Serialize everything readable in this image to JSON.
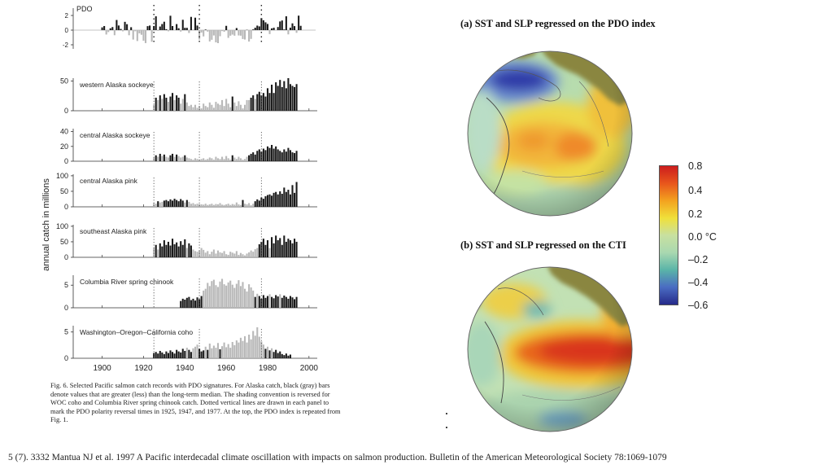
{
  "chart_data": [
    {
      "type": "bar",
      "title": "PDO",
      "ylabel": "",
      "yticks": [
        "2",
        "0",
        "-2"
      ],
      "ylim": [
        -3,
        3
      ],
      "dotted_lines": [
        1925,
        1947,
        1977
      ]
    },
    {
      "type": "bar",
      "shared_ylabel": "annual catch in millions",
      "xlim": [
        1886,
        2004
      ],
      "xticks": [
        "1900",
        "1920",
        "1940",
        "1960",
        "1980",
        "2000"
      ],
      "dotted_lines": [
        1925,
        1947,
        1977
      ],
      "panels": [
        {
          "name": "western Alaska sockeye",
          "yticks": [
            "50",
            "0"
          ],
          "ymax": 55,
          "start": 1925,
          "values": [
            10,
            22,
            18,
            26,
            20,
            28,
            22,
            15,
            24,
            30,
            18,
            26,
            22,
            12,
            20,
            28,
            14,
            8,
            10,
            6,
            10,
            5,
            8,
            4,
            12,
            8,
            6,
            14,
            10,
            5,
            15,
            12,
            10,
            18,
            8,
            20,
            12,
            6,
            24,
            14,
            8,
            16,
            10,
            4,
            10,
            18,
            18,
            22,
            26,
            20,
            28,
            32,
            26,
            30,
            24,
            38,
            30,
            44,
            30,
            48,
            42,
            52,
            40,
            50,
            38,
            55,
            45,
            42,
            40,
            45
          ]
        },
        {
          "name": "central Alaska sockeye",
          "yticks": [
            "40",
            "20",
            "0"
          ],
          "ymax": 44,
          "start": 1925,
          "values": [
            5,
            8,
            6,
            10,
            7,
            9,
            6,
            5,
            8,
            10,
            6,
            9,
            7,
            5,
            6,
            8,
            5,
            4,
            3,
            2,
            4,
            3,
            2,
            3,
            4,
            2,
            3,
            5,
            4,
            2,
            6,
            4,
            3,
            6,
            3,
            7,
            4,
            2,
            8,
            5,
            3,
            6,
            4,
            2,
            3,
            6,
            8,
            10,
            12,
            9,
            14,
            16,
            13,
            17,
            15,
            20,
            18,
            22,
            17,
            20,
            16,
            14,
            12,
            16,
            13,
            18,
            15,
            12,
            11,
            14
          ]
        },
        {
          "name": "central Alaska pink",
          "yticks": [
            "100",
            "50",
            "0"
          ],
          "ymax": 105,
          "start": 1925,
          "values": [
            12,
            10,
            18,
            14,
            16,
            20,
            22,
            18,
            24,
            20,
            26,
            22,
            18,
            25,
            20,
            14,
            22,
            16,
            10,
            12,
            8,
            10,
            9,
            8,
            7,
            10,
            6,
            8,
            10,
            6,
            9,
            8,
            12,
            7,
            6,
            8,
            10,
            6,
            9,
            7,
            14,
            8,
            6,
            22,
            10,
            8,
            12,
            5,
            10,
            18,
            24,
            20,
            30,
            26,
            34,
            38,
            40,
            36,
            45,
            48,
            40,
            50,
            42,
            62,
            48,
            55,
            40,
            70,
            45,
            80
          ]
        },
        {
          "name": "southeast Alaska pink",
          "yticks": [
            "100",
            "50",
            "0"
          ],
          "ymax": 105,
          "start": 1925,
          "values": [
            30,
            40,
            25,
            45,
            35,
            55,
            40,
            50,
            38,
            60,
            42,
            48,
            35,
            52,
            40,
            58,
            30,
            45,
            38,
            25,
            20,
            18,
            22,
            30,
            24,
            15,
            20,
            10,
            18,
            25,
            12,
            22,
            16,
            14,
            20,
            10,
            8,
            18,
            15,
            12,
            20,
            8,
            14,
            10,
            6,
            12,
            16,
            22,
            18,
            26,
            30,
            42,
            50,
            60,
            40,
            55,
            30,
            65,
            45,
            70,
            55,
            62,
            40,
            70,
            50,
            60,
            55,
            45,
            60,
            50
          ]
        },
        {
          "name": "Columbia River spring chinook",
          "yticks": [
            "5",
            "0"
          ],
          "ymax": 7.2,
          "start": 1938,
          "values": [
            1.5,
            2.0,
            1.8,
            2.2,
            2.4,
            1.7,
            2.0,
            1.6,
            2.3,
            1.9,
            2.6,
            3.8,
            4.2,
            5.5,
            4.8,
            5.9,
            6.2,
            5.0,
            4.6,
            5.8,
            6.4,
            5.2,
            4.9,
            5.6,
            6.0,
            5.1,
            4.4,
            5.3,
            6.1,
            4.8,
            5.7,
            4.2,
            3.6,
            5.2,
            4.5,
            3.8,
            2.4,
            3.1,
            2.6,
            2.0,
            2.8,
            2.2,
            2.6,
            3.0,
            2.4,
            2.1,
            2.8,
            2.5,
            3.0,
            2.2,
            2.7,
            2.4,
            2.0,
            2.6,
            2.3,
            1.9,
            2.4
          ]
        },
        {
          "name": "Washington–Oregon–California coho",
          "yticks": [
            "5",
            "0"
          ],
          "ymax": 6.2,
          "start": 1925,
          "values": [
            1.0,
            1.2,
            0.9,
            1.4,
            1.1,
            0.8,
            1.3,
            1.0,
            1.5,
            1.2,
            0.9,
            1.6,
            1.3,
            1.1,
            1.8,
            1.4,
            2.0,
            1.6,
            1.2,
            1.9,
            2.2,
            2.6,
            1.8,
            1.3,
            1.5,
            2.2,
            1.6,
            2.8,
            1.9,
            2.4,
            2.0,
            2.9,
            1.7,
            2.3,
            3.0,
            2.1,
            2.7,
            2.0,
            3.1,
            2.5,
            3.4,
            3.0,
            3.9,
            3.3,
            4.2,
            3.0,
            4.5,
            3.6,
            5.2,
            4.3,
            5.9,
            4.1,
            3.2,
            2.6,
            1.8,
            2.2,
            1.5,
            1.9,
            1.2,
            1.6,
            1.0,
            1.3,
            0.8,
            0.6,
            0.9,
            0.5,
            0.7
          ]
        }
      ]
    },
    {
      "type": "heatmap",
      "title": "(a) SST and SLP regressed on the PDO index"
    },
    {
      "type": "heatmap",
      "title": "(b) SST and SLP regressed on the CTI"
    },
    {
      "type": "colorbar",
      "ticks": [
        "0.8",
        "0.4",
        "0.2",
        "0.0 °C",
        "–0.2",
        "–0.4",
        "–0.6"
      ]
    }
  ],
  "caption": "Fig. 6. Selected Pacific salmon catch records with PDO signatures. For Alaska catch, black (gray) bars denote values that are greater (less) than the long-term median. The shading convention is reversed for WOC coho and Columbia River spring chinook catch. Dotted vertical lines are drawn in each panel to mark the PDO polarity reversal times in 1925, 1947, and 1977. At the top, the PDO index is repeated from Fig. 1.",
  "footer": "5 (7). 3332 Mantua NJ et al. 1997 A Pacific interdecadal climate oscillation with impacts on salmon production. Bulletin of the American Meteorological Society 78:1069-1079",
  "colors": {
    "above_median": "#1a1a1a",
    "below_median": "#b8b8b8",
    "colorbar_stops": [
      "#cc1d1d",
      "#e8561c",
      "#f3a21f",
      "#f0e03a",
      "#c8e0a0",
      "#a9d8b0",
      "#5ab4a8",
      "#4a6cc2",
      "#262a8a"
    ],
    "land": "#8a8640"
  }
}
